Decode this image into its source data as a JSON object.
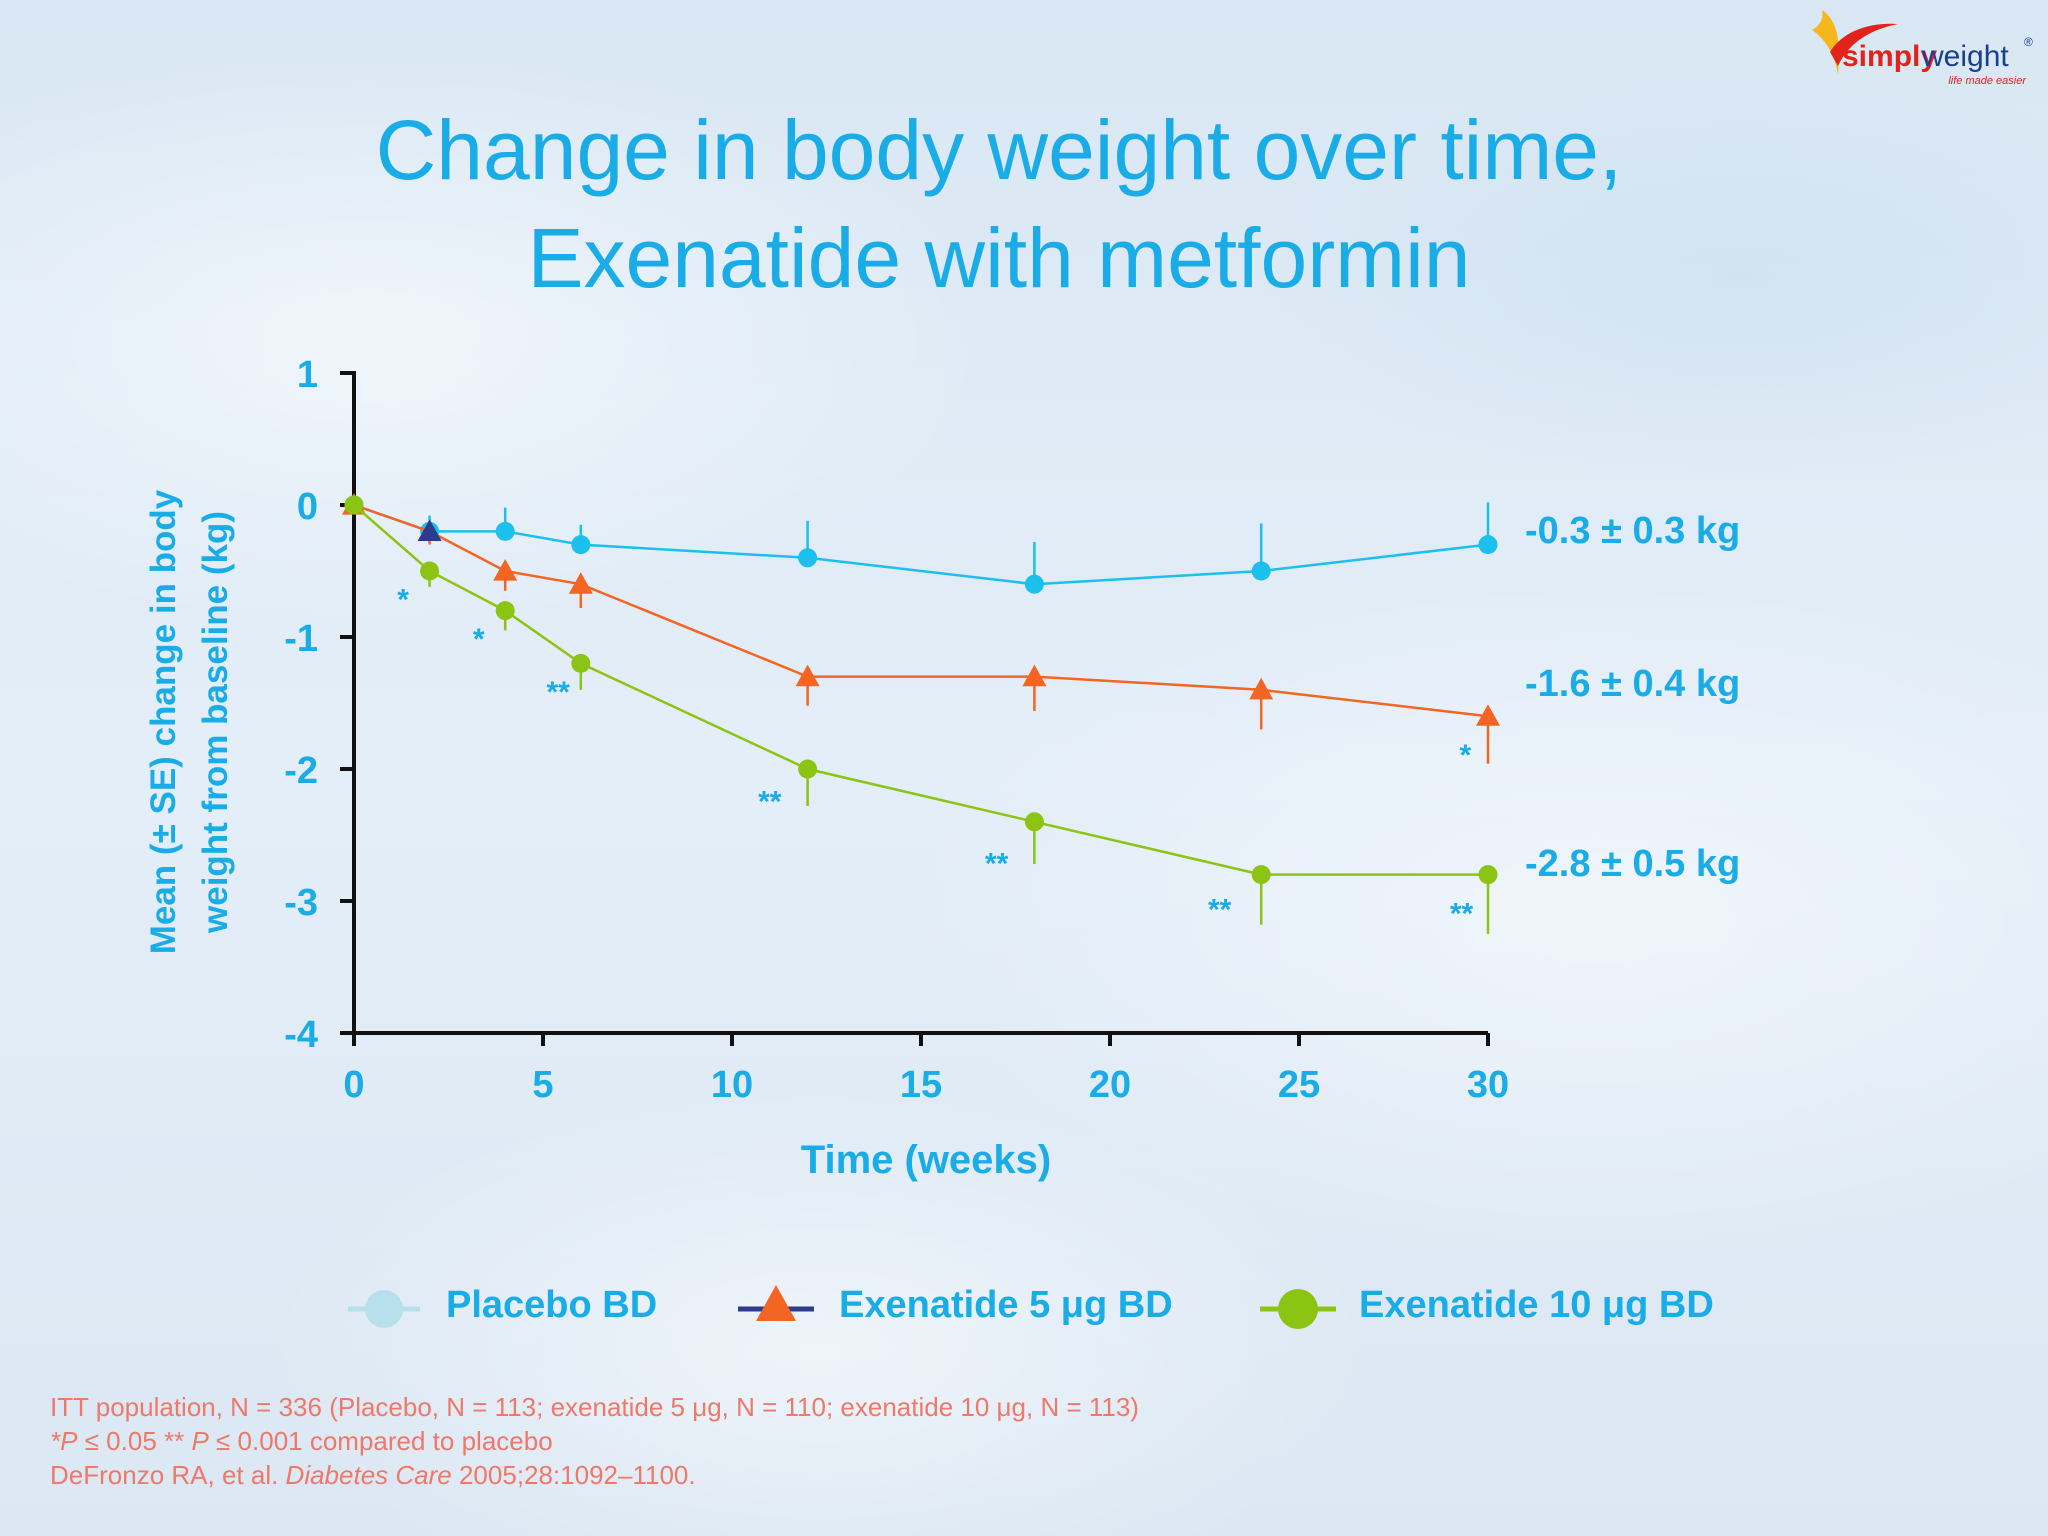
{
  "logo": {
    "brand_prefix": "simply",
    "brand_suffix": "weight",
    "registered": "®",
    "tagline": "life made easier",
    "icon": "swoosh-logo-icon"
  },
  "title": {
    "line1": "Change in body weight over time,",
    "line2": "Exenatide with metformin"
  },
  "chart_data": {
    "type": "line",
    "ylabel_line1": "Mean (± SE) change in body",
    "ylabel_line2": "weight  from baseline (kg)",
    "xlabel": "Time (weeks)",
    "xlim": [
      0,
      30
    ],
    "ylim": [
      -4,
      1
    ],
    "xticks": [
      0,
      5,
      10,
      15,
      20,
      25,
      30
    ],
    "yticks": [
      1,
      0,
      -1,
      -2,
      -3,
      -4
    ],
    "grid": false,
    "legend_position": "bottom",
    "series": [
      {
        "name": "Placebo BD",
        "color": "#1cc0ec",
        "marker": "circle",
        "x": [
          0,
          2,
          4,
          6,
          12,
          18,
          24,
          30
        ],
        "y": [
          0,
          -0.2,
          -0.2,
          -0.3,
          -0.4,
          -0.6,
          -0.5,
          -0.3
        ],
        "se": [
          0,
          0.12,
          0.18,
          0.15,
          0.28,
          0.32,
          0.36,
          0.32
        ],
        "error_direction": "up",
        "end_label": "-0.3 ± 0.3 kg"
      },
      {
        "name": "Exenatide 5 μg BD",
        "color": "#f26522",
        "marker": "triangle",
        "legend_line_color": "#2e3a8c",
        "x": [
          0,
          2,
          4,
          6,
          12,
          18,
          24,
          30
        ],
        "y": [
          0,
          -0.2,
          -0.5,
          -0.6,
          -1.3,
          -1.3,
          -1.4,
          -1.6
        ],
        "se": [
          0,
          0.1,
          0.15,
          0.18,
          0.22,
          0.26,
          0.3,
          0.36
        ],
        "error_direction": "down",
        "end_label": "-1.6 ± 0.4 kg"
      },
      {
        "name": "Exenatide 10 μg BD",
        "color": "#8cc414",
        "marker": "circle",
        "x": [
          0,
          2,
          4,
          6,
          12,
          18,
          24,
          30
        ],
        "y": [
          0,
          -0.5,
          -0.8,
          -1.2,
          -2.0,
          -2.4,
          -2.8,
          -2.8
        ],
        "se": [
          0,
          0.12,
          0.15,
          0.2,
          0.28,
          0.32,
          0.38,
          0.45
        ],
        "error_direction": "down",
        "end_label": "-2.8 ± 0.5 kg"
      }
    ],
    "annotations": [
      {
        "text": "*",
        "x": 1.3,
        "y": -0.7
      },
      {
        "text": "*",
        "x": 3.3,
        "y": -1.0
      },
      {
        "text": "**",
        "x": 5.4,
        "y": -1.4
      },
      {
        "text": "**",
        "x": 11.0,
        "y": -2.23
      },
      {
        "text": "**",
        "x": 17.0,
        "y": -2.7
      },
      {
        "text": "**",
        "x": 22.9,
        "y": -3.05
      },
      {
        "text": "**",
        "x": 29.3,
        "y": -3.08
      },
      {
        "text": "*",
        "x": 29.4,
        "y": -1.88
      }
    ]
  },
  "legend": {
    "placebo": "Placebo BD",
    "exe5": "Exenatide 5 μg BD",
    "exe10": "Exenatide 10 μg BD"
  },
  "footnotes": {
    "line1": "ITT population, N = 336  (Placebo, N = 113; exenatide 5 μg, N = 110; exenatide 10 μg, N = 113)",
    "line2_p": "P",
    "line2_a": " ≤ 0.05 ** ",
    "line2_b": " ≤ 0.001 compared to placebo",
    "line2_star": "*",
    "line3_a": "DeFronzo RA, et al. ",
    "line3_journal": "Diabetes Care",
    "line3_b": " 2005;28:1092–1100."
  }
}
